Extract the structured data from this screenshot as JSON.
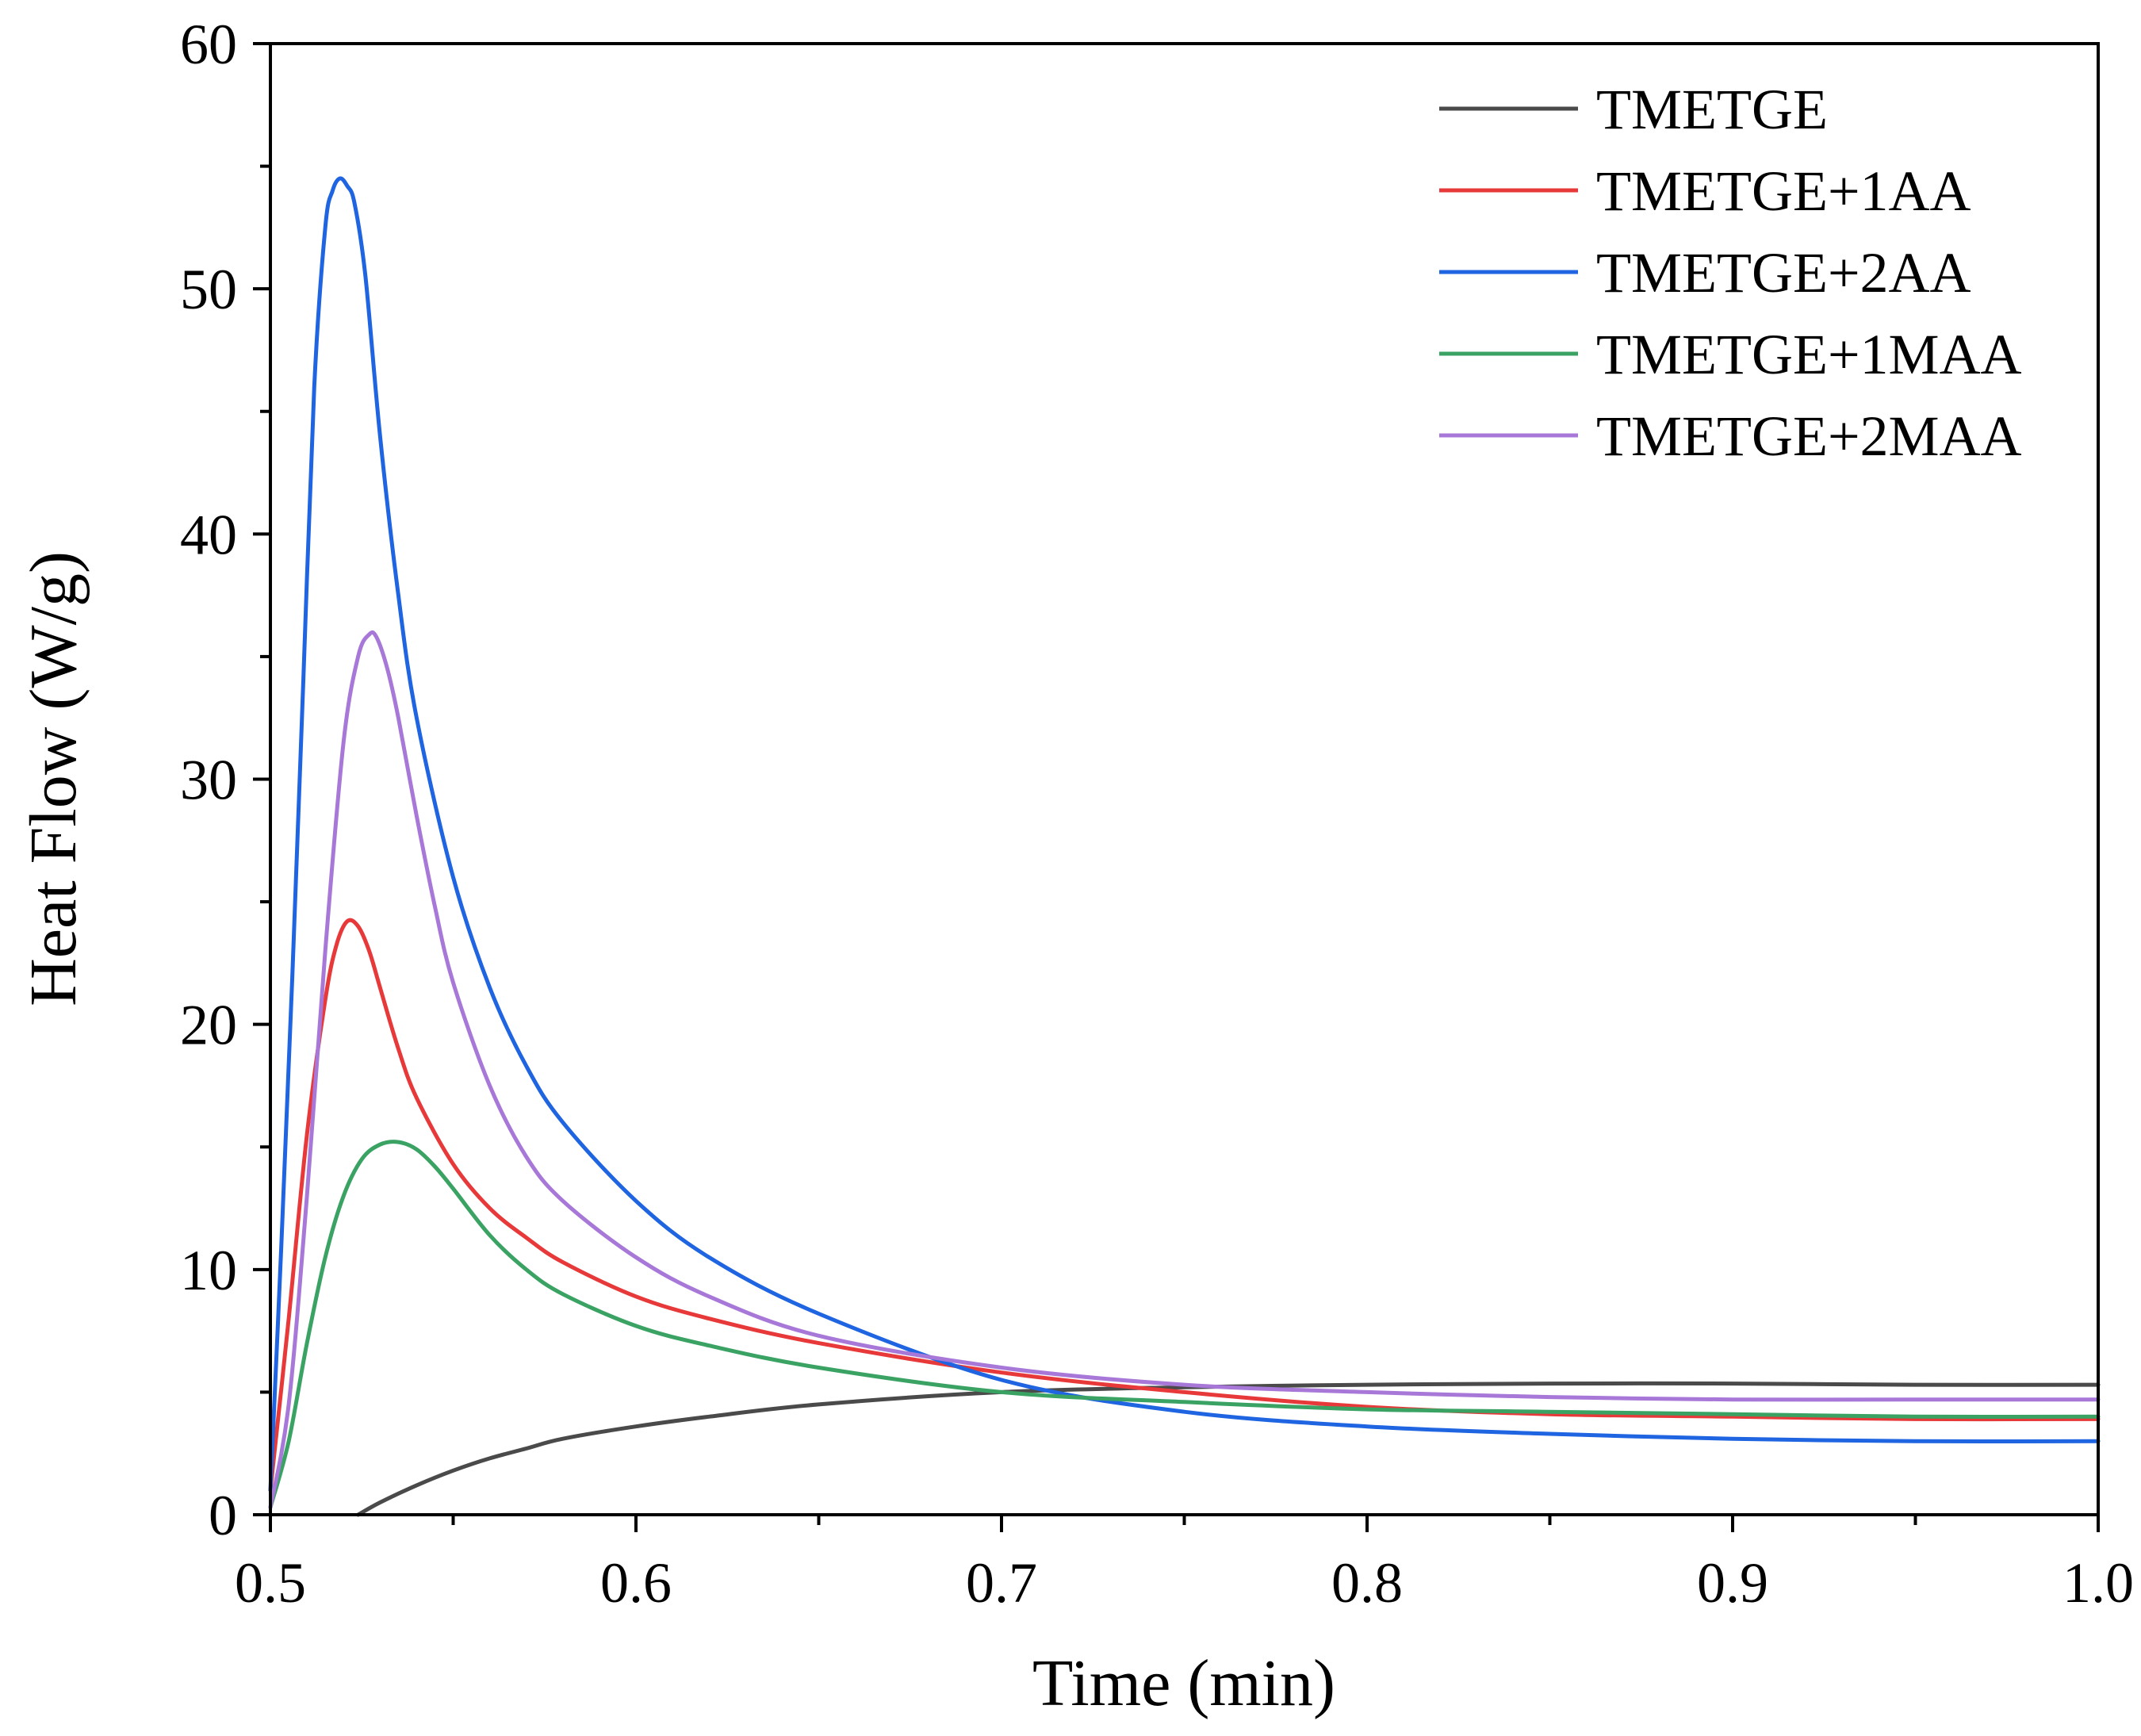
{
  "chart_data": {
    "type": "line",
    "title": "",
    "xlabel": "Time (min)",
    "ylabel": "Heat Flow (W/g)",
    "xlim": [
      0.5,
      1.0
    ],
    "ylim": [
      0,
      60
    ],
    "xticks": [
      0.5,
      0.6,
      0.7,
      0.8,
      0.9,
      1.0
    ],
    "xtick_labels": [
      "0.5",
      "0.6",
      "0.7",
      "0.8",
      "0.9",
      "1.0"
    ],
    "yticks": [
      0,
      10,
      20,
      30,
      40,
      50,
      60
    ],
    "ytick_labels": [
      "0",
      "10",
      "20",
      "30",
      "40",
      "50",
      "60"
    ],
    "grid": false,
    "legend_position": "top-right",
    "series": [
      {
        "name": "TMETGE",
        "color": "#4a4a4a",
        "x": [
          0.524,
          0.53,
          0.54,
          0.55,
          0.56,
          0.57,
          0.58,
          0.6,
          0.62,
          0.65,
          0.7,
          0.75,
          0.8,
          0.85,
          0.9,
          0.95,
          1.0
        ],
        "y": [
          0,
          0.5,
          1.2,
          1.8,
          2.3,
          2.7,
          3.1,
          3.6,
          4.0,
          4.5,
          5.0,
          5.2,
          5.3,
          5.35,
          5.35,
          5.3,
          5.3
        ]
      },
      {
        "name": "TMETGE+1AA",
        "color": "#e8393a",
        "x": [
          0.5,
          0.505,
          0.51,
          0.515,
          0.518,
          0.521,
          0.524,
          0.527,
          0.53,
          0.535,
          0.54,
          0.55,
          0.56,
          0.57,
          0.58,
          0.6,
          0.62,
          0.65,
          0.7,
          0.75,
          0.8,
          0.85,
          0.9,
          0.95,
          1.0
        ],
        "y": [
          1.0,
          8.0,
          15.5,
          21.0,
          23.2,
          24.2,
          24.0,
          23.0,
          21.5,
          19.0,
          17.0,
          14.3,
          12.5,
          11.3,
          10.3,
          8.9,
          8.0,
          7.0,
          5.8,
          5.0,
          4.4,
          4.1,
          4.0,
          3.9,
          3.9
        ]
      },
      {
        "name": "TMETGE+2AA",
        "color": "#1f64e0",
        "x": [
          0.5,
          0.503,
          0.506,
          0.509,
          0.512,
          0.515,
          0.517,
          0.519,
          0.521,
          0.523,
          0.526,
          0.53,
          0.535,
          0.54,
          0.55,
          0.56,
          0.57,
          0.58,
          0.6,
          0.62,
          0.65,
          0.7,
          0.75,
          0.8,
          0.85,
          0.9,
          0.95,
          1.0
        ],
        "y": [
          1.0,
          11.0,
          22.0,
          34.0,
          46.0,
          52.5,
          54.0,
          54.5,
          54.2,
          53.5,
          50.5,
          44.0,
          37.5,
          32.5,
          26.0,
          21.5,
          18.3,
          16.0,
          12.8,
          10.5,
          8.2,
          5.5,
          4.2,
          3.6,
          3.3,
          3.1,
          3.0,
          3.0
        ]
      },
      {
        "name": "TMETGE+1MAA",
        "color": "#3aa364",
        "x": [
          0.5,
          0.505,
          0.51,
          0.515,
          0.52,
          0.525,
          0.53,
          0.535,
          0.54,
          0.545,
          0.55,
          0.56,
          0.57,
          0.58,
          0.6,
          0.62,
          0.65,
          0.7,
          0.75,
          0.8,
          0.85,
          0.9,
          0.95,
          1.0
        ],
        "y": [
          0.3,
          3.0,
          7.0,
          10.5,
          13.0,
          14.5,
          15.1,
          15.2,
          14.9,
          14.2,
          13.3,
          11.4,
          10.0,
          9.0,
          7.7,
          6.9,
          6.0,
          5.0,
          4.6,
          4.3,
          4.2,
          4.1,
          4.0,
          4.0
        ]
      },
      {
        "name": "TMETGE+2MAA",
        "color": "#a878d8",
        "x": [
          0.5,
          0.505,
          0.51,
          0.515,
          0.52,
          0.524,
          0.527,
          0.529,
          0.532,
          0.535,
          0.54,
          0.545,
          0.55,
          0.56,
          0.57,
          0.58,
          0.6,
          0.62,
          0.65,
          0.7,
          0.75,
          0.8,
          0.85,
          0.9,
          0.95,
          1.0
        ],
        "y": [
          0.3,
          4.5,
          13.0,
          23.0,
          31.5,
          35.0,
          35.9,
          35.8,
          34.5,
          32.5,
          28.5,
          24.8,
          21.7,
          17.5,
          14.6,
          12.8,
          10.5,
          8.9,
          7.3,
          6.0,
          5.3,
          5.0,
          4.8,
          4.7,
          4.7,
          4.7
        ]
      }
    ]
  }
}
